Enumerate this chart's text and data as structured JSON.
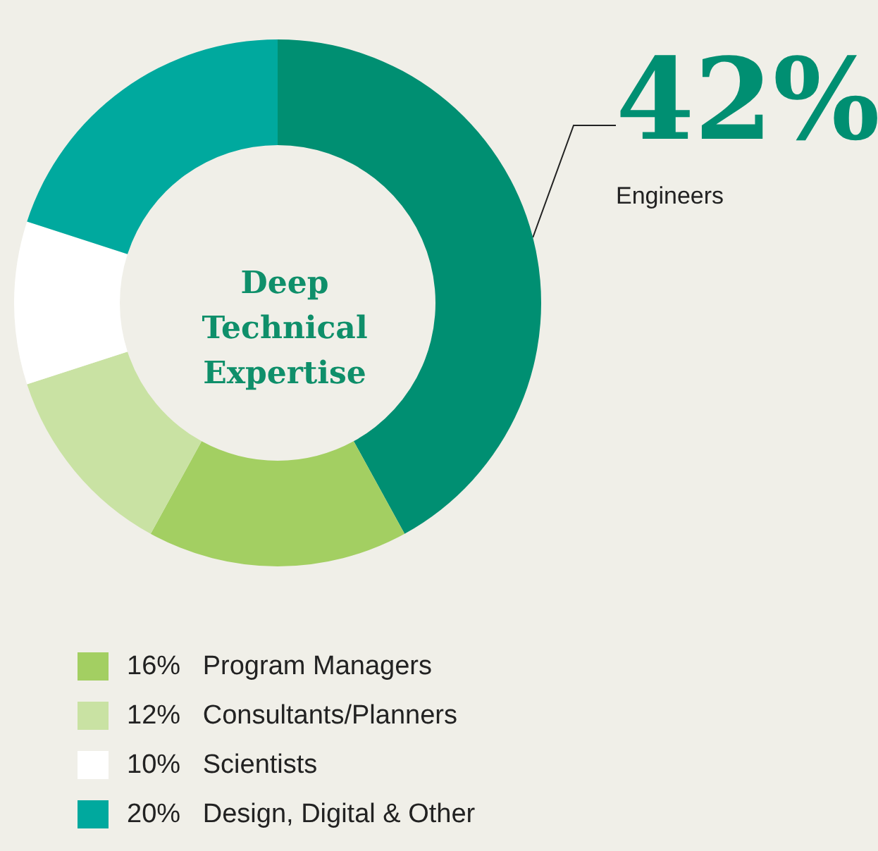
{
  "chart_data": {
    "type": "donut",
    "title": "Deep Technical Expertise",
    "categories": [
      "Engineers",
      "Program Managers",
      "Consultants/Planners",
      "Scientists",
      "Design, Digital & Other"
    ],
    "values": [
      42,
      16,
      12,
      10,
      20
    ],
    "colors": [
      "#008f72",
      "#a3cf62",
      "#c9e2a3",
      "#ffffff",
      "#00a99e"
    ],
    "value_labels": [
      "42%",
      "16%",
      "12%",
      "10%",
      "20%"
    ],
    "legend": "bottom left"
  }
}
